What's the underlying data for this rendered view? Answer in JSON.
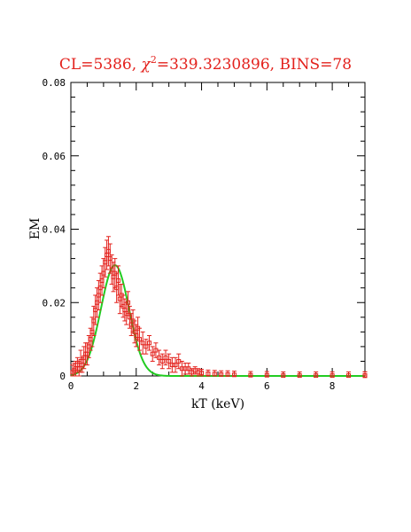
{
  "chart_data": {
    "type": "scatter",
    "title_parts": {
      "prefix": "CL=5386, ",
      "chi": "χ",
      "sup": "2",
      "suffix": "=339.3230896, BINS=78"
    },
    "xlabel": "kT (keV)",
    "ylabel": "EM",
    "xlim": [
      0,
      9
    ],
    "ylim": [
      0,
      0.08
    ],
    "x_ticks": [
      0,
      2,
      4,
      6,
      8
    ],
    "y_ticks": [
      0,
      0.02,
      0.04,
      0.06,
      0.08
    ],
    "x_tick_labels": [
      "0",
      "2",
      "4",
      "6",
      "8"
    ],
    "y_tick_labels": [
      "0",
      "0.02",
      "0.04",
      "0.06",
      "0.08"
    ],
    "grid": false,
    "colors": {
      "data": "#e3211c",
      "model": "#22cc22",
      "title": "#e3211c",
      "axes": "#000000"
    },
    "series": [
      {
        "kind": "points_with_errorbars",
        "x": [
          0.05,
          0.1,
          0.15,
          0.2,
          0.25,
          0.3,
          0.35,
          0.4,
          0.45,
          0.5,
          0.55,
          0.6,
          0.65,
          0.7,
          0.75,
          0.8,
          0.85,
          0.9,
          0.95,
          1.0,
          1.05,
          1.1,
          1.15,
          1.2,
          1.25,
          1.3,
          1.35,
          1.4,
          1.45,
          1.5,
          1.55,
          1.6,
          1.65,
          1.7,
          1.75,
          1.8,
          1.85,
          1.9,
          1.95,
          2.0,
          2.05,
          2.1,
          2.2,
          2.3,
          2.4,
          2.5,
          2.6,
          2.7,
          2.8,
          2.9,
          3.0,
          3.1,
          3.2,
          3.3,
          3.4,
          3.5,
          3.6,
          3.7,
          3.8,
          3.9,
          4.0,
          4.2,
          4.4,
          4.6,
          4.8,
          5.0,
          5.5,
          6.0,
          6.5,
          7.0,
          7.5,
          8.0,
          8.5,
          9.0,
          9.0,
          9.0,
          9.0,
          9.0
        ],
        "y": [
          0.001,
          0.0015,
          0.002,
          0.003,
          0.002,
          0.004,
          0.003,
          0.005,
          0.006,
          0.006,
          0.008,
          0.01,
          0.012,
          0.015,
          0.018,
          0.02,
          0.022,
          0.024,
          0.026,
          0.028,
          0.031,
          0.033,
          0.034,
          0.032,
          0.029,
          0.027,
          0.028,
          0.024,
          0.026,
          0.021,
          0.022,
          0.019,
          0.018,
          0.017,
          0.02,
          0.016,
          0.014,
          0.015,
          0.012,
          0.011,
          0.013,
          0.01,
          0.009,
          0.008,
          0.009,
          0.006,
          0.007,
          0.005,
          0.004,
          0.005,
          0.004,
          0.003,
          0.003,
          0.004,
          0.002,
          0.002,
          0.002,
          0.001,
          0.0015,
          0.001,
          0.0008,
          0.0006,
          0.0005,
          0.0004,
          0.0004,
          0.0003,
          0.0002,
          0.0002,
          0.0001,
          0.0001,
          0.0001,
          0.0001,
          0.0001,
          0.0001,
          0.0001,
          0.0001,
          0.0001,
          0.0001
        ],
        "err": [
          0.002,
          0.002,
          0.002,
          0.002,
          0.002,
          0.003,
          0.002,
          0.003,
          0.003,
          0.003,
          0.003,
          0.003,
          0.004,
          0.004,
          0.004,
          0.004,
          0.004,
          0.004,
          0.004,
          0.004,
          0.004,
          0.004,
          0.004,
          0.004,
          0.004,
          0.004,
          0.004,
          0.004,
          0.004,
          0.004,
          0.003,
          0.003,
          0.003,
          0.003,
          0.003,
          0.003,
          0.003,
          0.003,
          0.003,
          0.003,
          0.003,
          0.003,
          0.003,
          0.002,
          0.002,
          0.002,
          0.002,
          0.002,
          0.002,
          0.002,
          0.002,
          0.002,
          0.002,
          0.002,
          0.002,
          0.0015,
          0.0015,
          0.001,
          0.001,
          0.001,
          0.001,
          0.001,
          0.001,
          0.001,
          0.001,
          0.001,
          0.001,
          0.001,
          0.001,
          0.001,
          0.001,
          0.001,
          0.001,
          0.001,
          0.001,
          0.001,
          0.001,
          0.001
        ]
      },
      {
        "kind": "gaussian_model",
        "amplitude": 0.0302,
        "mean": 1.35,
        "sigma": 0.43
      }
    ]
  }
}
